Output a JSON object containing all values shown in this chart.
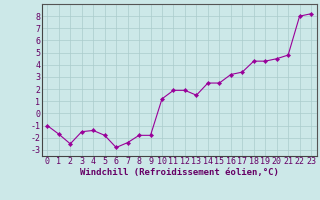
{
  "x": [
    0,
    1,
    2,
    3,
    4,
    5,
    6,
    7,
    8,
    9,
    10,
    11,
    12,
    13,
    14,
    15,
    16,
    17,
    18,
    19,
    20,
    21,
    22,
    23
  ],
  "y": [
    -1.0,
    -1.7,
    -2.5,
    -1.5,
    -1.4,
    -1.8,
    -2.8,
    -2.4,
    -1.8,
    -1.8,
    1.2,
    1.9,
    1.9,
    1.5,
    2.5,
    2.5,
    3.2,
    3.4,
    4.3,
    4.3,
    4.5,
    4.8,
    8.0,
    8.2
  ],
  "x_ticks": [
    0,
    1,
    2,
    3,
    4,
    5,
    6,
    7,
    8,
    9,
    10,
    11,
    12,
    13,
    14,
    15,
    16,
    17,
    18,
    19,
    20,
    21,
    22,
    23
  ],
  "y_ticks": [
    -3,
    -2,
    -1,
    0,
    1,
    2,
    3,
    4,
    5,
    6,
    7,
    8
  ],
  "ylim": [
    -3.5,
    9.0
  ],
  "xlim": [
    -0.5,
    23.5
  ],
  "line_color": "#990099",
  "marker_color": "#990099",
  "bg_color": "#cce8e8",
  "grid_color": "#aacccc",
  "xlabel": "Windchill (Refroidissement éolien,°C)",
  "xlabel_fontsize": 6.5,
  "tick_fontsize": 6.0,
  "text_color": "#660066"
}
